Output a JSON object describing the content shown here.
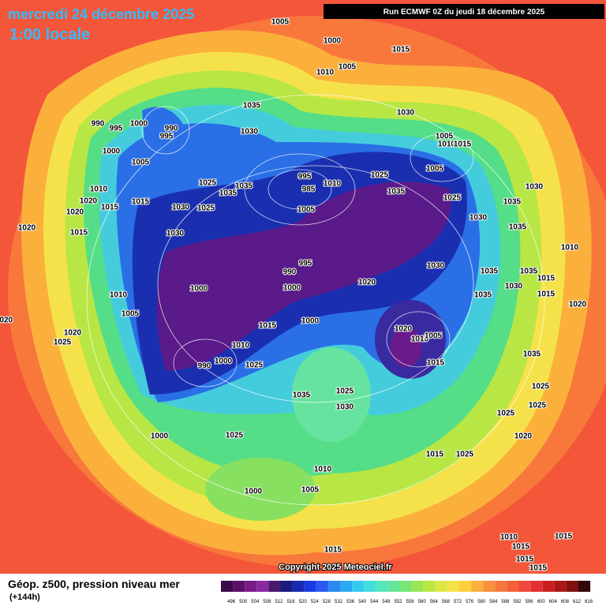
{
  "header": {
    "title": "mercredi 24 décembre 2025",
    "subtitle": "1:00 locale",
    "run": "Run ECMWF 0Z du jeudi 18 décembre 2025"
  },
  "map": {
    "pressure_labels": [
      1005,
      1000,
      1015,
      1010,
      1005,
      1035,
      1030,
      990,
      995,
      1000,
      990,
      995,
      1030,
      1005,
      1010,
      1015,
      1000,
      1005,
      995,
      1025,
      1005,
      985,
      1010,
      1025,
      1035,
      1035,
      1035,
      1030,
      1025,
      1010,
      1020,
      1015,
      1015,
      1030,
      1025,
      1005,
      1035,
      1030,
      1020,
      1020,
      1015,
      1030,
      1035,
      1010,
      995,
      990,
      1030,
      1035,
      1035,
      1020,
      1015,
      1000,
      1000,
      1030,
      1035,
      1015,
      1010,
      1020,
      1005,
      1000,
      1015,
      1020,
      1020,
      1010,
      1005,
      1020,
      1025,
      1010,
      990,
      1000,
      1025,
      1015,
      1035,
      1025,
      1035,
      1025,
      1030,
      1025,
      1025,
      1000,
      1025,
      1020,
      1015,
      1025,
      1010,
      1000,
      1005,
      1010,
      1015,
      1015,
      1015,
      1015,
      1015
    ]
  },
  "footer": {
    "caption": "Géop. z500, pression niveau mer",
    "lead_time": "(+144h)",
    "copyright": "Copyright 2025 Meteociel.fr"
  },
  "legend": {
    "values": [
      496,
      500,
      504,
      508,
      512,
      516,
      520,
      524,
      528,
      532,
      536,
      540,
      544,
      548,
      552,
      556,
      560,
      564,
      568,
      572,
      576,
      580,
      584,
      588,
      592,
      596,
      600,
      604,
      608,
      612,
      616
    ]
  }
}
